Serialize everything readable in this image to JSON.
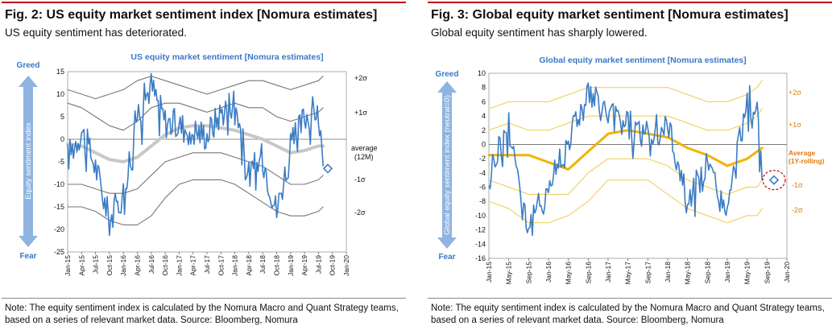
{
  "figures": [
    {
      "fig_title": "Fig. 2: US equity market sentiment index [Nomura estimates]",
      "subtitle": "US equity sentiment has deteriorated.",
      "note": "Note: The equity sentiment index is calculated by the Nomura Macro and Quant Strategy teams, based on a series of relevant market data. Source: Bloomberg, Nomura",
      "greed_label": "Greed",
      "fear_label": "Fear",
      "arrow_label": "Equity sentiment index",
      "labels": {
        "p2": "+2σ",
        "p1": "+1σ",
        "avg": "average",
        "avg2": "(12M)",
        "m1": "-1σ",
        "m2": "-2σ"
      }
    },
    {
      "fig_title": "Fig. 3: Global equity market sentiment [Nomura estimates]",
      "subtitle": "Global equity sentiment has sharply lowered.",
      "note": "Note: The equity sentiment index is calculated by the Nomura Macro and Quant Strategy teams, based on a series of relevant market data. Source: Bloomberg, Nomura",
      "greed_label": "Greed",
      "fear_label": "Fear",
      "arrow_label": "Global equity sentiment index (neutral=0)",
      "labels": {
        "p2": "+2σ",
        "p1": "+1σ",
        "avg": "Average",
        "avg2": "(1Y-rolling)",
        "m1": "-1σ",
        "m2": "-2σ"
      }
    }
  ],
  "colors": {
    "index": "#3b7cc4",
    "band_us": "#777777",
    "avg_us": "#c8c8c8",
    "band_gl": "#f2c94c",
    "avg_gl": "#f0b400",
    "title_rule": "#c00000",
    "marker_ring": "#cc0000"
  },
  "chart_data": [
    {
      "type": "line",
      "title": "US equity market sentiment [Nomura estimates]",
      "ylim": [
        -25,
        15
      ],
      "yticks": [
        15,
        10,
        5,
        0,
        -5,
        -10,
        -15,
        -20,
        -25
      ],
      "x_tick_labels": [
        "Jan-15",
        "Apr-15",
        "Jul-15",
        "Oct-15",
        "Jan-16",
        "Apr-16",
        "Jul-16",
        "Oct-16",
        "Jan-17",
        "Apr-17",
        "Jul-17",
        "Oct-17",
        "Jan-18",
        "Apr-18",
        "Jul-18",
        "Oct-18",
        "Jan-19",
        "Apr-19",
        "Jul-19",
        "Oct-19",
        "Jan-20"
      ],
      "x_dates": [
        "2015-01",
        "2015-04",
        "2015-07",
        "2015-10",
        "2016-01",
        "2016-04",
        "2016-07",
        "2016-10",
        "2017-01",
        "2017-04",
        "2017-07",
        "2017-10",
        "2018-01",
        "2018-04",
        "2018-07",
        "2018-10",
        "2019-01",
        "2019-04",
        "2019-07",
        "2019-08"
      ],
      "series": [
        {
          "name": "index",
          "values": [
            -4,
            2,
            -6,
            -18,
            -12,
            6,
            12,
            4,
            3,
            2,
            1,
            6,
            9,
            -8,
            -4,
            -16,
            -2,
            5,
            7,
            -6
          ]
        },
        {
          "name": "average (12M)",
          "values": [
            -1,
            -1.5,
            -3,
            -4.5,
            -5,
            -4,
            -1.5,
            1,
            2.5,
            3,
            3,
            2.5,
            2,
            1,
            0,
            -1.5,
            -3,
            -2.5,
            -1.5,
            -1.5
          ]
        },
        {
          "name": "+2σ",
          "values": [
            11,
            10,
            9,
            10,
            11,
            13,
            14,
            13,
            12,
            11,
            10,
            11,
            12,
            13,
            13,
            12,
            11,
            12,
            13,
            14
          ]
        },
        {
          "name": "+1σ",
          "values": [
            8,
            7,
            5,
            3,
            2,
            4,
            7,
            8,
            8,
            7,
            6,
            7,
            8,
            7,
            7,
            5,
            4,
            5,
            6,
            7
          ]
        },
        {
          "name": "-1σ",
          "values": [
            -10,
            -10,
            -11,
            -12,
            -12,
            -11,
            -8,
            -5,
            -4,
            -3,
            -3,
            -3,
            -4,
            -5,
            -6,
            -8,
            -10,
            -10,
            -9,
            -8
          ]
        },
        {
          "name": "-2σ",
          "values": [
            -15,
            -15,
            -16,
            -18,
            -19,
            -19,
            -17,
            -13,
            -10,
            -9,
            -9,
            -9,
            -10,
            -12,
            -14,
            -16,
            -17,
            -17,
            -16,
            -15
          ]
        }
      ]
    },
    {
      "type": "line",
      "title": "Global equity market sentiment [Nomura estimates]",
      "ylim": [
        -16,
        10
      ],
      "yticks": [
        10,
        8,
        6,
        4,
        2,
        0,
        -2,
        -4,
        -6,
        -8,
        -10,
        -12,
        -14,
        -16
      ],
      "x_tick_labels": [
        "Jan-15",
        "May-15",
        "Sep-15",
        "Jan-16",
        "May-16",
        "Sep-16",
        "Jan-17",
        "May-17",
        "Sep-17",
        "Jan-18",
        "May-18",
        "Sep-18",
        "Jan-19",
        "May-19",
        "Sep-19",
        "Jan-20"
      ],
      "x_dates": [
        "2015-01",
        "2015-05",
        "2015-09",
        "2016-01",
        "2016-05",
        "2016-09",
        "2017-01",
        "2017-05",
        "2017-09",
        "2018-01",
        "2018-05",
        "2018-09",
        "2019-01",
        "2019-05",
        "2019-07",
        "2019-08"
      ],
      "series": [
        {
          "name": "index",
          "values": [
            -4,
            3,
            -12,
            -6,
            1,
            7,
            4,
            3,
            1,
            3,
            -8,
            -3,
            -10,
            7,
            4,
            -5
          ]
        },
        {
          "name": "Average (1Y-rolling)",
          "values": [
            -1.5,
            -1.5,
            -1.5,
            -2.5,
            -3.5,
            -1,
            1.5,
            2,
            1.5,
            1,
            -0.5,
            -1.5,
            -3,
            -2,
            -1,
            -0.5
          ]
        },
        {
          "name": "+2σ",
          "values": [
            5,
            6,
            6,
            6,
            7,
            8,
            8,
            8,
            8,
            8,
            7,
            6,
            6,
            7,
            8,
            9
          ]
        },
        {
          "name": "+1σ",
          "values": [
            2,
            3,
            2,
            2,
            3,
            4,
            4,
            4,
            4,
            4,
            3,
            2,
            2,
            3,
            4,
            5
          ]
        },
        {
          "name": "-1σ",
          "values": [
            -5,
            -6,
            -7,
            -7,
            -7,
            -4,
            -2,
            -2,
            -2,
            -3,
            -5,
            -6,
            -7,
            -6,
            -6,
            -5
          ]
        },
        {
          "name": "-2σ",
          "values": [
            -8,
            -9,
            -11,
            -11,
            -10,
            -8,
            -5,
            -5,
            -5,
            -7,
            -9,
            -10,
            -11,
            -10,
            -10,
            -9
          ]
        }
      ]
    }
  ]
}
